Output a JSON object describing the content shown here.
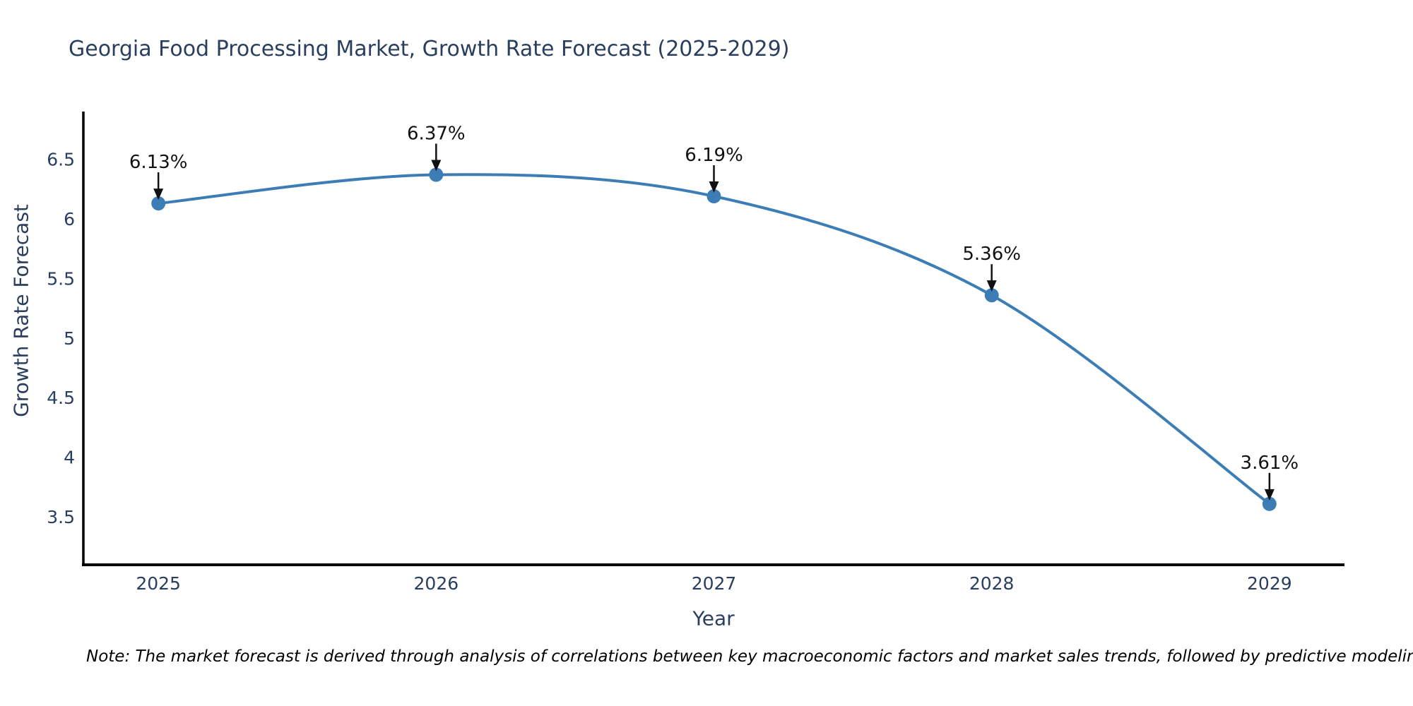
{
  "chart_data": {
    "type": "line",
    "title": "Georgia Food Processing Market, Growth Rate Forecast (2025-2029)",
    "xlabel": "Year",
    "ylabel": "Growth Rate Forecast",
    "x": [
      2025,
      2026,
      2027,
      2028,
      2029
    ],
    "values": [
      6.13,
      6.37,
      6.19,
      5.36,
      3.61
    ],
    "point_labels": [
      "6.13%",
      "6.37%",
      "6.19%",
      "5.36%",
      "3.61%"
    ],
    "x_tick_labels": [
      "2025",
      "2026",
      "2027",
      "2028",
      "2029"
    ],
    "y_ticks": [
      3.5,
      4,
      4.5,
      5,
      5.5,
      6,
      6.5
    ],
    "y_tick_labels": [
      "3.5",
      "4",
      "4.5",
      "5",
      "5.5",
      "6",
      "6.5"
    ],
    "xlim": [
      2024.73,
      2029.27
    ],
    "ylim": [
      3.1,
      6.9
    ],
    "line_shape": "spline",
    "grid": false,
    "legend": false,
    "colors": {
      "line": "#3d7db5",
      "marker": "#3d7db5",
      "axis": "#000000",
      "tick_label": "#2a3f5f",
      "title": "#2a3f5f",
      "annotation": "#111111",
      "background": "#ffffff"
    }
  },
  "note": {
    "text": "Note: The market forecast is derived through analysis of correlations between key macroeconomic factors and market sales trends, followed by predictive modeling to project future sales"
  }
}
